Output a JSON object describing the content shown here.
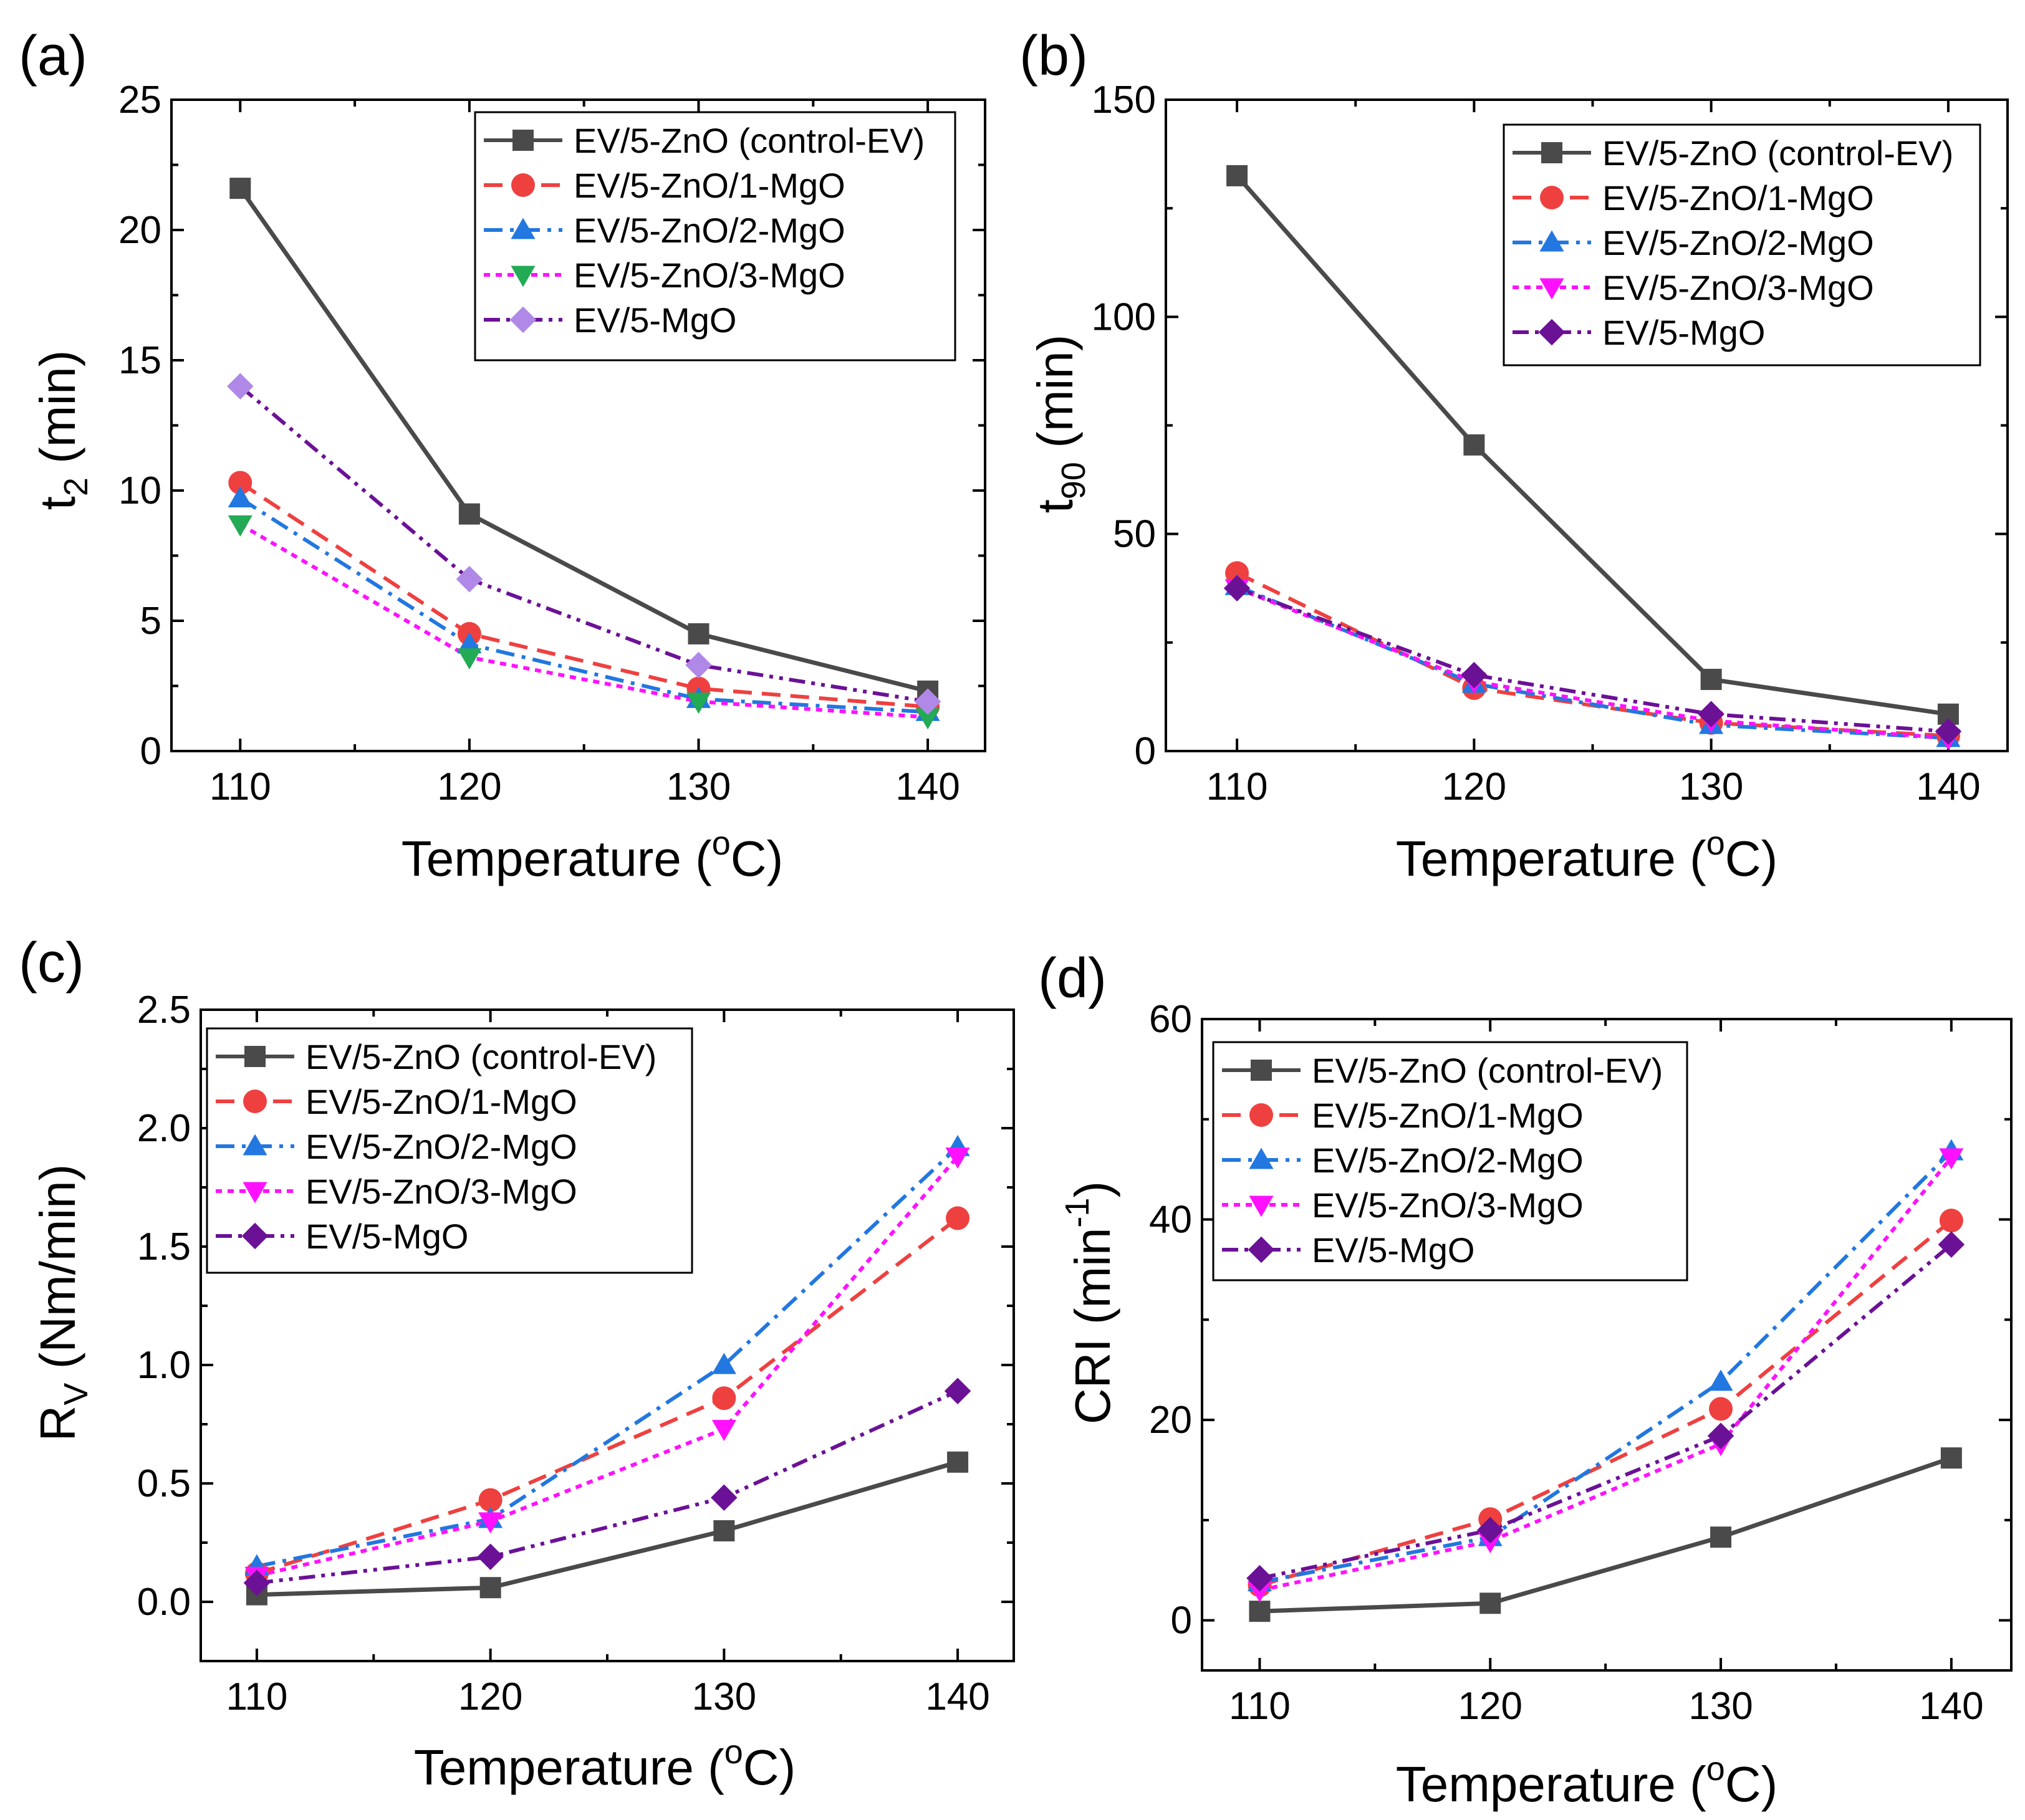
{
  "colors": {
    "control": "#4a4a4a",
    "mg1": "#ef4040",
    "mg2": "#2277e0",
    "mg3": "#ff11ff",
    "mg3_green": "#22aa55",
    "mgo_light": "#b088e8",
    "mgo_dark": "#6b1196"
  },
  "legend_labels": [
    "EV/5-ZnO (control-EV)",
    "EV/5-ZnO/1-MgO",
    "EV/5-ZnO/2-MgO",
    "EV/5-ZnO/3-MgO",
    "EV/5-MgO"
  ],
  "chart_data": [
    {
      "panel": "(a)",
      "type": "line",
      "xlabel": "Temperature (oC)",
      "ylabel": "t2 (min)",
      "x": [
        110,
        120,
        130,
        140
      ],
      "xlim": [
        107,
        142.5
      ],
      "ylim": [
        0,
        25
      ],
      "xticks": [
        110,
        120,
        130,
        140
      ],
      "yticks": [
        0,
        5,
        10,
        15,
        20,
        25
      ],
      "legend_position": "top-right",
      "series": [
        {
          "name": "EV/5-ZnO (control-EV)",
          "values": [
            21.6,
            9.1,
            4.5,
            2.3
          ],
          "marker": "square",
          "color": "#4a4a4a",
          "dash": "solid"
        },
        {
          "name": "EV/5-ZnO/1-MgO",
          "values": [
            10.3,
            4.5,
            2.4,
            1.7
          ],
          "marker": "circle",
          "color": "#ef4040",
          "dash": "dash"
        },
        {
          "name": "EV/5-ZnO/2-MgO",
          "values": [
            9.7,
            4.1,
            2.0,
            1.5
          ],
          "marker": "triangle-up",
          "color": "#2277e0",
          "dash": "dashdot"
        },
        {
          "name": "EV/5-ZnO/3-MgO",
          "values": [
            8.7,
            3.6,
            1.9,
            1.3
          ],
          "marker": "triangle-down",
          "color": "#22aa55",
          "line_color": "#ff11ff",
          "dash": "dot"
        },
        {
          "name": "EV/5-MgO",
          "values": [
            14.0,
            6.6,
            3.3,
            1.9
          ],
          "marker": "diamond",
          "color": "#b088e8",
          "line_color": "#6b1196",
          "dash": "dashdotdot"
        }
      ]
    },
    {
      "panel": "(b)",
      "type": "line",
      "xlabel": "Temperature (oC)",
      "ylabel": "t90 (min)",
      "x": [
        110,
        120,
        130,
        140
      ],
      "xlim": [
        107,
        142.5
      ],
      "ylim": [
        0,
        150
      ],
      "xticks": [
        110,
        120,
        130,
        140
      ],
      "yticks": [
        0,
        50,
        100,
        150
      ],
      "legend_position": "top-right",
      "series": [
        {
          "name": "EV/5-ZnO (control-EV)",
          "values": [
            132.5,
            70.5,
            16.5,
            8.5
          ],
          "marker": "square",
          "color": "#4a4a4a",
          "dash": "solid"
        },
        {
          "name": "EV/5-ZnO/1-MgO",
          "values": [
            41.0,
            14.5,
            6.5,
            3.5
          ],
          "marker": "circle",
          "color": "#ef4040",
          "dash": "dash"
        },
        {
          "name": "EV/5-ZnO/2-MgO",
          "values": [
            38.0,
            15.5,
            6.0,
            3.0
          ],
          "marker": "triangle-up",
          "color": "#2277e0",
          "dash": "dashdot"
        },
        {
          "name": "EV/5-ZnO/3-MgO",
          "values": [
            37.5,
            16.0,
            7.0,
            3.0
          ],
          "marker": "triangle-down",
          "color": "#ff11ff",
          "dash": "dot"
        },
        {
          "name": "EV/5-MgO",
          "values": [
            37.5,
            17.5,
            8.5,
            4.5
          ],
          "marker": "diamond",
          "color": "#6b1196",
          "dash": "dashdotdot"
        }
      ]
    },
    {
      "panel": "(c)",
      "type": "line",
      "xlabel": "Temperature (oC)",
      "ylabel": "Rv (Nm/min)",
      "x": [
        110,
        120,
        130,
        140
      ],
      "xlim": [
        107.6,
        142.4
      ],
      "ylim": [
        -0.25,
        2.5
      ],
      "xticks": [
        110,
        120,
        130,
        140
      ],
      "yticks": [
        0.0,
        0.5,
        1.0,
        1.5,
        2.0,
        2.5
      ],
      "legend_position": "top-left",
      "series": [
        {
          "name": "EV/5-ZnO (control-EV)",
          "values": [
            0.03,
            0.06,
            0.3,
            0.59
          ],
          "marker": "square",
          "color": "#4a4a4a",
          "dash": "solid"
        },
        {
          "name": "EV/5-ZnO/1-MgO",
          "values": [
            0.12,
            0.43,
            0.86,
            1.62
          ],
          "marker": "circle",
          "color": "#ef4040",
          "dash": "dash"
        },
        {
          "name": "EV/5-ZnO/2-MgO",
          "values": [
            0.15,
            0.35,
            1.0,
            1.92
          ],
          "marker": "triangle-up",
          "color": "#2277e0",
          "dash": "dashdot"
        },
        {
          "name": "EV/5-ZnO/3-MgO",
          "values": [
            0.11,
            0.34,
            0.73,
            1.88
          ],
          "marker": "triangle-down",
          "color": "#ff11ff",
          "dash": "dot"
        },
        {
          "name": "EV/5-MgO",
          "values": [
            0.08,
            0.19,
            0.44,
            0.89
          ],
          "marker": "diamond",
          "color": "#6b1196",
          "dash": "dashdotdot"
        }
      ]
    },
    {
      "panel": "(d)",
      "type": "line",
      "xlabel": "Temperature (oC)",
      "ylabel": "CRI (min-1)",
      "x": [
        110,
        120,
        130,
        140
      ],
      "xlim": [
        107.5,
        142.6
      ],
      "ylim": [
        -5,
        60
      ],
      "xticks": [
        110,
        120,
        130,
        140
      ],
      "yticks": [
        0,
        20,
        40,
        60
      ],
      "legend_position": "top-left",
      "series": [
        {
          "name": "EV/5-ZnO (control-EV)",
          "values": [
            0.9,
            1.7,
            8.3,
            16.2
          ],
          "marker": "square",
          "color": "#4a4a4a",
          "dash": "solid"
        },
        {
          "name": "EV/5-ZnO/1-MgO",
          "values": [
            3.5,
            10.1,
            21.1,
            39.9
          ],
          "marker": "circle",
          "color": "#ef4040",
          "dash": "dash"
        },
        {
          "name": "EV/5-ZnO/2-MgO",
          "values": [
            3.8,
            8.3,
            23.8,
            46.8
          ],
          "marker": "triangle-up",
          "color": "#2277e0",
          "dash": "dashdot"
        },
        {
          "name": "EV/5-ZnO/3-MgO",
          "values": [
            3.0,
            7.9,
            17.6,
            46.2
          ],
          "marker": "triangle-down",
          "color": "#ff11ff",
          "dash": "dot"
        },
        {
          "name": "EV/5-MgO",
          "values": [
            4.2,
            9.0,
            18.4,
            37.5
          ],
          "marker": "diamond",
          "color": "#6b1196",
          "dash": "dashdotdot"
        }
      ]
    }
  ],
  "text": {
    "panel_a_label": "(a)",
    "panel_b_label": "(b)",
    "panel_c_label": "(c)",
    "panel_d_label": "(d)",
    "xlabel_main": "Temperature (",
    "xlabel_sup": "o",
    "xlabel_end": "C)",
    "a_ylabel_main": "t",
    "a_ylabel_sub": "2",
    "a_ylabel_end": " (min)",
    "b_ylabel_main": "t",
    "b_ylabel_sub": "90",
    "b_ylabel_end": " (min)",
    "c_ylabel_main": "R",
    "c_ylabel_sub": "V",
    "c_ylabel_end": " (Nm/min)",
    "d_ylabel_main": "CRI (min",
    "d_ylabel_sup": "-1",
    "d_ylabel_end": ")"
  }
}
